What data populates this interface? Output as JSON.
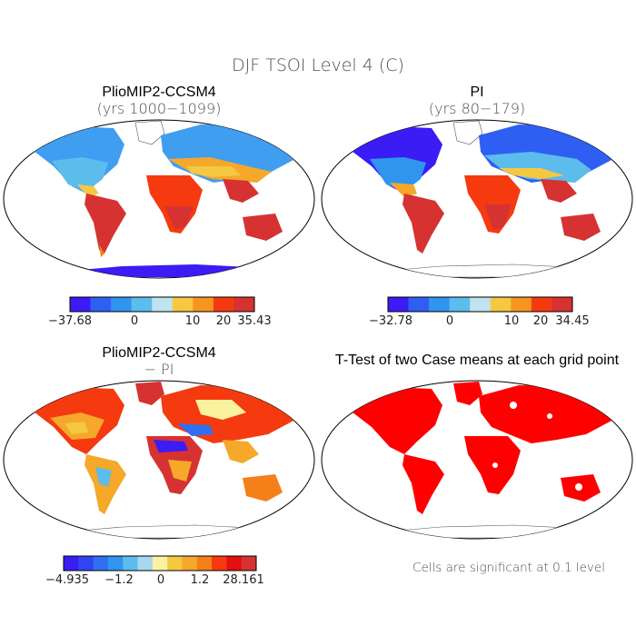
{
  "figure": {
    "title": "DJF TSOI Level 4 (C)",
    "footnote": "Cells are significant at 0.1 level"
  },
  "panels": [
    {
      "title": "PlioMIP2-CCSM4",
      "subtitle": "(yrs 1000−1099)",
      "colorbar": {
        "labels": [
          "−37.68",
          "0",
          "10",
          "20",
          "35.43"
        ],
        "colors": [
          "#3b1cf5",
          "#2f5ff2",
          "#2f95ee",
          "#5cbcec",
          "#bfe3ef",
          "#f4c840",
          "#f59520",
          "#f53a10",
          "#d63232"
        ]
      }
    },
    {
      "title": "PI",
      "subtitle": "(yrs 80−179)",
      "colorbar": {
        "labels": [
          "−32.78",
          "0",
          "10",
          "20",
          "34.45"
        ],
        "colors": [
          "#3b1cf5",
          "#2f5ff2",
          "#2f95ee",
          "#5cbcec",
          "#bfe3ef",
          "#f4c840",
          "#f59520",
          "#f53a10",
          "#d63232"
        ]
      }
    },
    {
      "title": "PlioMIP2-CCSM4",
      "subtitle": "− PI",
      "colorbar": {
        "labels": [
          "−4.935",
          "−1.2",
          "0",
          "1.2",
          "28.161"
        ],
        "colors": [
          "#3b1cf5",
          "#2f44f2",
          "#2f6ff0",
          "#2f95ee",
          "#5cbcec",
          "#a8d8ef",
          "#fbf2a0",
          "#f4c840",
          "#f5a82a",
          "#f57f18",
          "#f53a10",
          "#e31010",
          "#d63232"
        ]
      }
    },
    {
      "title": "T-Test of two Case means at each grid point",
      "subtitle": ""
    }
  ],
  "chart_data": [
    {
      "type": "heatmap",
      "title": "PlioMIP2-CCSM4",
      "subtitle": "(yrs 1000−1099)",
      "projection": "robinson",
      "variable": "DJF TSOI Level 4",
      "units": "C",
      "colorbar": [
        "-37.68",
        "0",
        "10",
        "20",
        "35.43"
      ],
      "range": [
        -37.68,
        35.43
      ]
    },
    {
      "type": "heatmap",
      "title": "PI",
      "subtitle": "(yrs 80−179)",
      "projection": "robinson",
      "variable": "DJF TSOI Level 4",
      "units": "C",
      "colorbar": [
        "-32.78",
        "0",
        "10",
        "20",
        "34.45"
      ],
      "range": [
        -32.78,
        34.45
      ]
    },
    {
      "type": "heatmap",
      "title": "PlioMIP2-CCSM4",
      "subtitle": "− PI",
      "projection": "robinson",
      "variable": "DJF TSOI Level 4 difference",
      "units": "C",
      "colorbar": [
        "-4.935",
        "-1.2",
        "0",
        "1.2",
        "28.161"
      ],
      "range": [
        -4.935,
        28.161
      ]
    },
    {
      "type": "heatmap",
      "title": "T-Test of two Case means at each grid point",
      "projection": "robinson",
      "significance_level": 0.1,
      "note": "Cells are significant at 0.1 level",
      "significant_color": "#ff0000"
    }
  ]
}
